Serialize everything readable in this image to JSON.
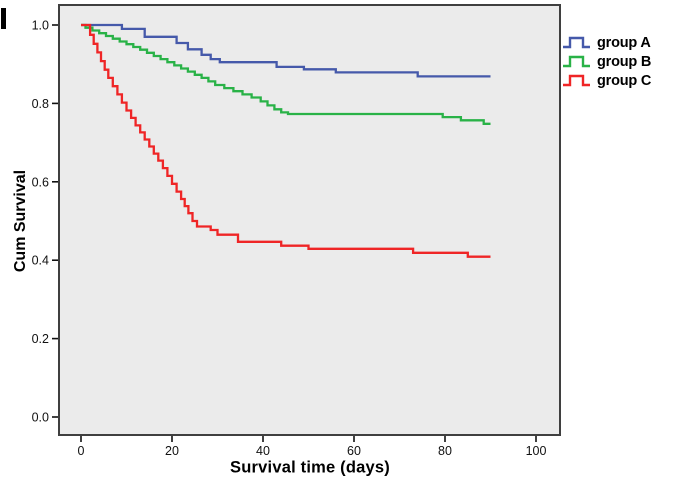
{
  "chart_data": {
    "type": "line",
    "subtype": "kaplan-meier-step",
    "title": "",
    "xlabel": "Survival time (days)",
    "ylabel": "Cum Survival",
    "xlim": [
      0,
      100
    ],
    "ylim": [
      0.0,
      1.0
    ],
    "grid": false,
    "legend_position": "right",
    "plot_bg": "#EBEBEB",
    "frame_color": "#3F3F3F",
    "tick_color": "#111111",
    "end_day": 90,
    "x_ticks": [
      {
        "value": 0,
        "label": "0"
      },
      {
        "value": 20,
        "label": "20"
      },
      {
        "value": 40,
        "label": "40"
      },
      {
        "value": 60,
        "label": "60"
      },
      {
        "value": 80,
        "label": "80"
      },
      {
        "value": 100,
        "label": "100"
      }
    ],
    "y_ticks": [
      {
        "value": 1.0,
        "label": "1.0"
      },
      {
        "value": 0.8,
        "label": "0.8"
      },
      {
        "value": 0.6,
        "label": "0.6"
      },
      {
        "value": 0.4,
        "label": "0.4"
      },
      {
        "value": 0.2,
        "label": "0.2"
      },
      {
        "value": 0.0,
        "label": "0.0"
      }
    ],
    "series": [
      {
        "name": "group A",
        "color": "#4559AA",
        "points": [
          [
            0,
            1.0
          ],
          [
            9,
            0.99
          ],
          [
            14,
            0.97
          ],
          [
            21,
            0.954
          ],
          [
            23.5,
            0.938
          ],
          [
            26.5,
            0.924
          ],
          [
            28.5,
            0.913
          ],
          [
            30.5,
            0.905
          ],
          [
            43,
            0.893
          ],
          [
            49,
            0.887
          ],
          [
            56,
            0.879
          ],
          [
            74,
            0.869
          ]
        ]
      },
      {
        "name": "group B",
        "color": "#29B247",
        "points": [
          [
            0,
            1.0
          ],
          [
            1,
            0.993
          ],
          [
            2.5,
            0.986
          ],
          [
            4,
            0.979
          ],
          [
            5.5,
            0.972
          ],
          [
            7,
            0.965
          ],
          [
            8.5,
            0.958
          ],
          [
            10,
            0.951
          ],
          [
            11.5,
            0.944
          ],
          [
            13,
            0.937
          ],
          [
            14.5,
            0.929
          ],
          [
            16,
            0.921
          ],
          [
            17.5,
            0.913
          ],
          [
            19,
            0.905
          ],
          [
            20.5,
            0.897
          ],
          [
            22,
            0.889
          ],
          [
            23.5,
            0.881
          ],
          [
            25,
            0.873
          ],
          [
            26.5,
            0.865
          ],
          [
            28,
            0.856
          ],
          [
            29.5,
            0.847
          ],
          [
            31.5,
            0.839
          ],
          [
            33.5,
            0.831
          ],
          [
            35.5,
            0.823
          ],
          [
            37.5,
            0.815
          ],
          [
            39.5,
            0.805
          ],
          [
            41,
            0.795
          ],
          [
            42.5,
            0.785
          ],
          [
            44,
            0.777
          ],
          [
            45.5,
            0.773
          ],
          [
            79.5,
            0.765
          ],
          [
            83.5,
            0.757
          ],
          [
            88.5,
            0.748
          ]
        ]
      },
      {
        "name": "group C",
        "color": "#EF2526",
        "points": [
          [
            0,
            1.0
          ],
          [
            2,
            0.975
          ],
          [
            2.8,
            0.952
          ],
          [
            3.6,
            0.93
          ],
          [
            4.4,
            0.908
          ],
          [
            5.2,
            0.886
          ],
          [
            6,
            0.865
          ],
          [
            7,
            0.844
          ],
          [
            8,
            0.823
          ],
          [
            9,
            0.802
          ],
          [
            10,
            0.782
          ],
          [
            11,
            0.763
          ],
          [
            12,
            0.744
          ],
          [
            13,
            0.726
          ],
          [
            14,
            0.708
          ],
          [
            15,
            0.69
          ],
          [
            16,
            0.672
          ],
          [
            17,
            0.654
          ],
          [
            18,
            0.635
          ],
          [
            19,
            0.615
          ],
          [
            20,
            0.595
          ],
          [
            21,
            0.575
          ],
          [
            22,
            0.556
          ],
          [
            22.8,
            0.538
          ],
          [
            23.6,
            0.52
          ],
          [
            24.5,
            0.5
          ],
          [
            25.5,
            0.486
          ],
          [
            28.5,
            0.477
          ],
          [
            30,
            0.465
          ],
          [
            34.5,
            0.447
          ],
          [
            44,
            0.437
          ],
          [
            50,
            0.429
          ],
          [
            73,
            0.419
          ],
          [
            85,
            0.409
          ]
        ]
      }
    ]
  }
}
